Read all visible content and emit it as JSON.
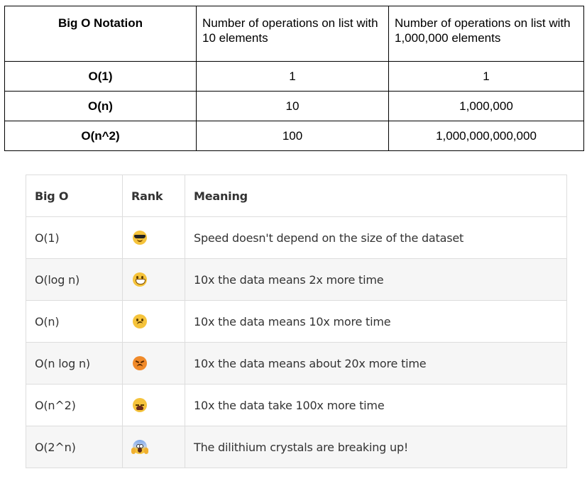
{
  "table1": {
    "headers": [
      "Big O Notation",
      "Number of operations on list with 10 elements",
      "Number of operations on list with 1,000,000 elements"
    ],
    "rows": [
      [
        "O(1)",
        "1",
        "1"
      ],
      [
        "O(n)",
        "10",
        "1,000,000"
      ],
      [
        "O(n^2)",
        "100",
        "1,000,000,000,000"
      ]
    ]
  },
  "table2": {
    "headers": [
      "Big O",
      "Rank",
      "Meaning"
    ],
    "rows": [
      {
        "big_o": "O(1)",
        "rank_icon": "sunglasses-face-icon",
        "meaning": "Speed doesn't depend on the size of the dataset"
      },
      {
        "big_o": "O(log n)",
        "rank_icon": "grimacing-face-icon",
        "meaning": "10x the data means 2x more time"
      },
      {
        "big_o": "O(n)",
        "rank_icon": "confused-face-icon",
        "meaning": "10x the data means 10x more time"
      },
      {
        "big_o": "O(n log n)",
        "rank_icon": "angry-face-icon",
        "meaning": "10x the data means about 20x more time"
      },
      {
        "big_o": "O(n^2)",
        "rank_icon": "tired-face-icon",
        "meaning": "10x the data take 100x more time"
      },
      {
        "big_o": "O(2^n)",
        "rank_icon": "screaming-face-icon",
        "meaning": "The dilithium crystals are breaking up!"
      }
    ]
  },
  "colors": {
    "table1_border": "#000000",
    "table2_border": "#dddddd",
    "table2_alt_row": "#f6f6f6",
    "table2_text": "#333333"
  }
}
